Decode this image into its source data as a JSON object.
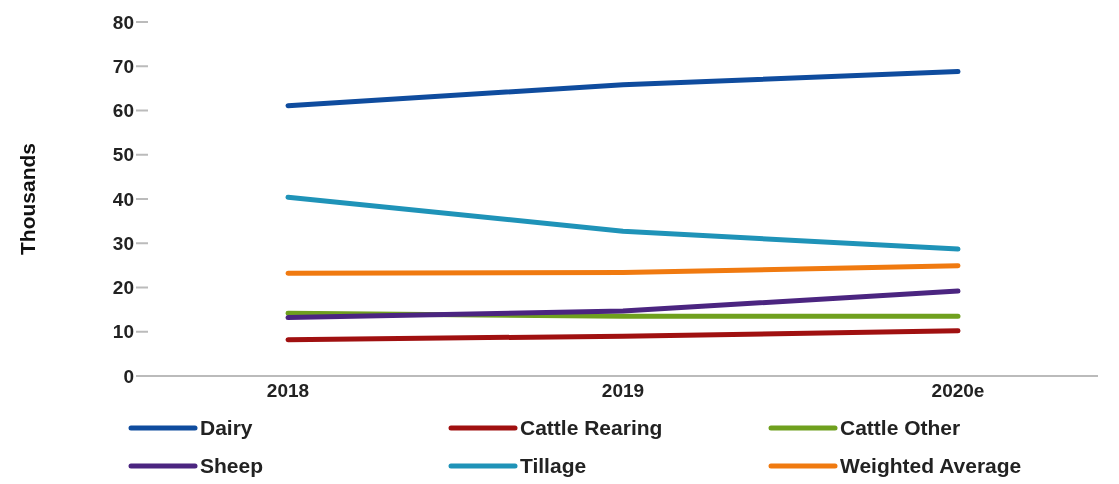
{
  "chart_data": {
    "type": "line",
    "ylabel": "Thousands",
    "categories": [
      "2018",
      "2019",
      "2020e"
    ],
    "series": [
      {
        "name": "Dairy",
        "color": "#0f4c9e",
        "values": [
          61.1,
          65.8,
          68.8
        ]
      },
      {
        "name": "Cattle Rearing",
        "color": "#a01010",
        "values": [
          8.2,
          9.0,
          10.2
        ]
      },
      {
        "name": "Cattle Other",
        "color": "#6fa01e",
        "values": [
          14.2,
          13.5,
          13.5
        ]
      },
      {
        "name": "Sheep",
        "color": "#4b2580",
        "values": [
          13.2,
          14.7,
          19.2
        ]
      },
      {
        "name": "Tillage",
        "color": "#1f93b8",
        "values": [
          40.4,
          32.7,
          28.7
        ]
      },
      {
        "name": "Weighted Average",
        "color": "#f07a10",
        "values": [
          23.2,
          23.4,
          24.9
        ]
      }
    ],
    "ylim": [
      0,
      80
    ],
    "yticks": [
      0,
      10,
      20,
      30,
      40,
      50,
      60,
      70,
      80
    ],
    "grid": false,
    "legend": "bottom",
    "marker": "none",
    "line_style": "solid"
  }
}
